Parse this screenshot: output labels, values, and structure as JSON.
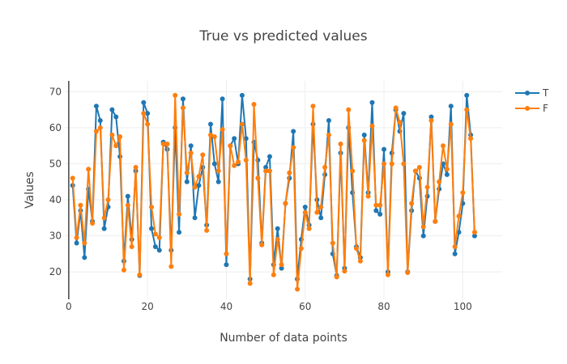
{
  "chart_data": {
    "type": "line",
    "title": "True vs predicted values",
    "xlabel": "Number of data points",
    "ylabel": "Values",
    "xlim": [
      -1,
      110
    ],
    "ylim": [
      12.4,
      73
    ],
    "xticks": [
      0,
      20,
      40,
      60,
      80,
      100
    ],
    "yticks": [
      20,
      30,
      40,
      50,
      60,
      70
    ],
    "grid": true,
    "legend_position": "top-right",
    "colors": {
      "true": "#1f77b4",
      "predicted": "#ff7f0e",
      "grid": "#eeeeee",
      "axis": "#444444"
    },
    "x": [
      1,
      2,
      3,
      4,
      5,
      6,
      7,
      8,
      9,
      10,
      11,
      12,
      13,
      14,
      15,
      16,
      17,
      18,
      19,
      20,
      21,
      22,
      23,
      24,
      25,
      26,
      27,
      28,
      29,
      30,
      31,
      32,
      33,
      34,
      35,
      36,
      37,
      38,
      39,
      40,
      41,
      42,
      43,
      44,
      45,
      46,
      47,
      48,
      49,
      50,
      51,
      52,
      53,
      54,
      55,
      56,
      57,
      58,
      59,
      60,
      61,
      62,
      63,
      64,
      65,
      66,
      67,
      68,
      69,
      70,
      71,
      72,
      73,
      74,
      75,
      76,
      77,
      78,
      79,
      80,
      81,
      82,
      83,
      84,
      85,
      86,
      87,
      88,
      89,
      90,
      91,
      92,
      93,
      94,
      95,
      96,
      97,
      98,
      99,
      100,
      101,
      102,
      103
    ],
    "series": [
      {
        "name": "T",
        "values": [
          44,
          28,
          37,
          24,
          43,
          34,
          66,
          62,
          32,
          38,
          65,
          63,
          52,
          23,
          41,
          29,
          48,
          19,
          67,
          64,
          32,
          27,
          26,
          56,
          54,
          26,
          60,
          31,
          68,
          45,
          55,
          35,
          44,
          49,
          33,
          61,
          50,
          45,
          68,
          22,
          55,
          57,
          50,
          69,
          57,
          18,
          56,
          51,
          28,
          49,
          52,
          22,
          32,
          21,
          39,
          46,
          59,
          18,
          29,
          38,
          33,
          61,
          40,
          35,
          47,
          62,
          25,
          19,
          53,
          21,
          60,
          42,
          27,
          24,
          58,
          42,
          67,
          37,
          36,
          54,
          20,
          53,
          65,
          59,
          64,
          20,
          37,
          48,
          46,
          30,
          41,
          63,
          34,
          43,
          50,
          47,
          66,
          25,
          31,
          39,
          69,
          58,
          30
        ]
      },
      {
        "name": "F",
        "values": [
          46,
          29.5,
          38.5,
          28,
          48.5,
          33.5,
          59,
          60,
          35,
          40,
          58,
          55,
          57.5,
          20.5,
          38.5,
          27,
          49,
          19.2,
          64,
          61,
          38,
          30.5,
          29.5,
          55.5,
          55.5,
          21.5,
          69,
          36,
          65.5,
          47.5,
          53,
          43.5,
          46.5,
          52.5,
          31.5,
          58,
          57.5,
          48,
          59.5,
          25,
          55,
          49.5,
          50.5,
          61,
          51,
          16.8,
          66.5,
          46,
          27.5,
          48,
          48,
          19.2,
          29,
          22,
          39,
          47.5,
          54.5,
          15.2,
          26.5,
          36.5,
          32,
          66,
          36.5,
          38,
          49,
          58,
          28,
          18.6,
          55.5,
          20.2,
          65,
          48,
          26.5,
          23,
          56.5,
          41,
          60.5,
          38.5,
          38.5,
          50,
          19.2,
          50,
          65.5,
          61.5,
          50,
          19.8,
          39,
          48,
          49,
          32.5,
          43.5,
          62,
          34,
          45,
          55,
          48.5,
          61,
          27,
          35.5,
          42,
          65,
          57,
          31
        ]
      }
    ]
  }
}
